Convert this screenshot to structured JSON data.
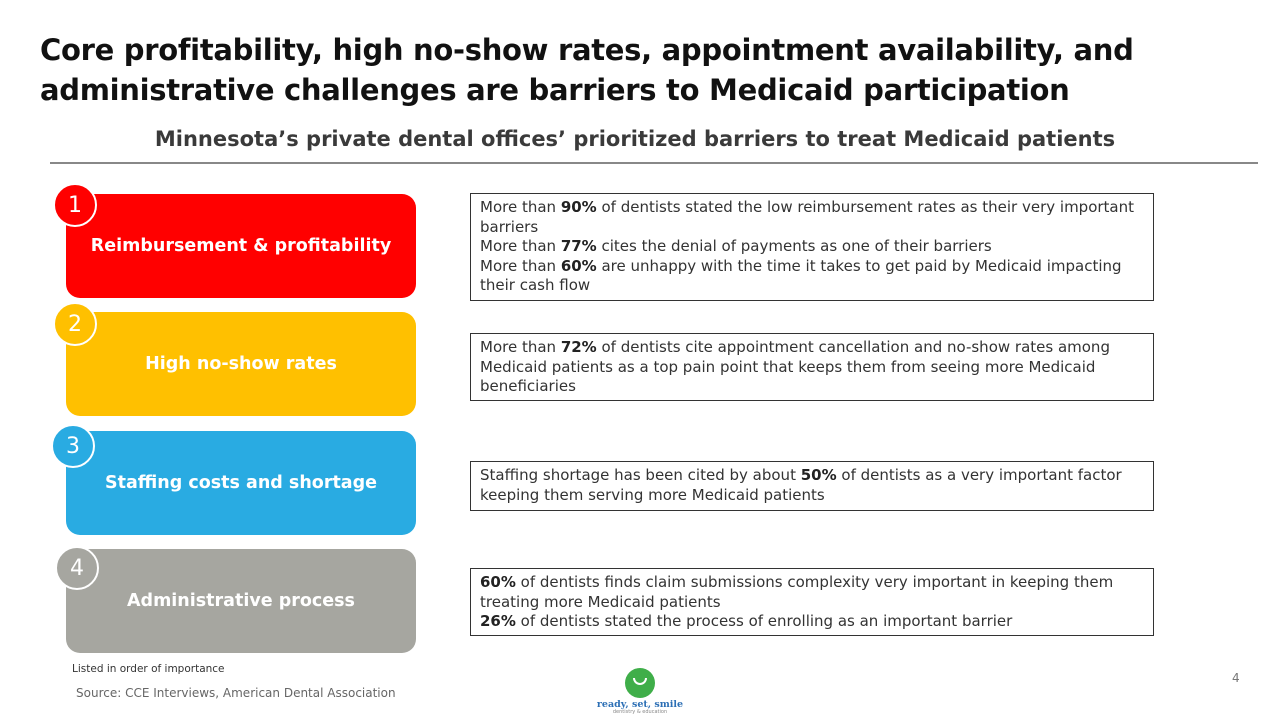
{
  "slide": {
    "title": "Core profitability, high no-show rates, appointment availability, and administrative challenges are barriers to Medicaid participation",
    "subtitle": "Minnesota’s private dental offices’ prioritized barriers to treat Medicaid patients",
    "note": "Listed in order of importance",
    "source": "Source: CCE Interviews, American Dental Association",
    "page_number": "4"
  },
  "barriers": [
    {
      "number": "1",
      "label": "Reimbursement & profitability",
      "color": "#ff0000",
      "description": [
        {
          "pre": "More than ",
          "bold": "90%",
          "post": " of dentists stated the low reimbursement rates as their very important barriers"
        },
        {
          "pre": "More than ",
          "bold": "77%",
          "post": " cites the denial of payments as one of their barriers"
        },
        {
          "pre": "More than ",
          "bold": "60%",
          "post": " are unhappy with the time it takes to get paid by Medicaid impacting their cash flow"
        }
      ]
    },
    {
      "number": "2",
      "label": "High no-show rates",
      "color": "#ffc000",
      "description": [
        {
          "pre": "More than ",
          "bold": "72%",
          "post": " of dentists cite appointment cancellation and no-show rates among Medicaid patients as a top pain point that keeps them from seeing more Medicaid beneficiaries"
        }
      ]
    },
    {
      "number": "3",
      "label": "Staffing costs and shortage",
      "color": "#29abe2",
      "description": [
        {
          "pre": "Staffing shortage has been cited by about ",
          "bold": "50%",
          "post": " of dentists as a very important factor keeping them serving more Medicaid patients"
        }
      ]
    },
    {
      "number": "4",
      "label": "Administrative process",
      "color": "#a6a6a0",
      "description": [
        {
          "pre": "",
          "bold": "60%",
          "post": " of dentists finds claim submissions complexity very important in keeping them treating more Medicaid patients"
        },
        {
          "pre": "",
          "bold": "26%",
          "post": " of dentists stated the process of enrolling as an important barrier"
        }
      ]
    }
  ],
  "logo": {
    "name": "ready, set, smile",
    "tagline": "dentistry & education",
    "icon": "smiley-face-icon",
    "color": "#3fae49"
  }
}
